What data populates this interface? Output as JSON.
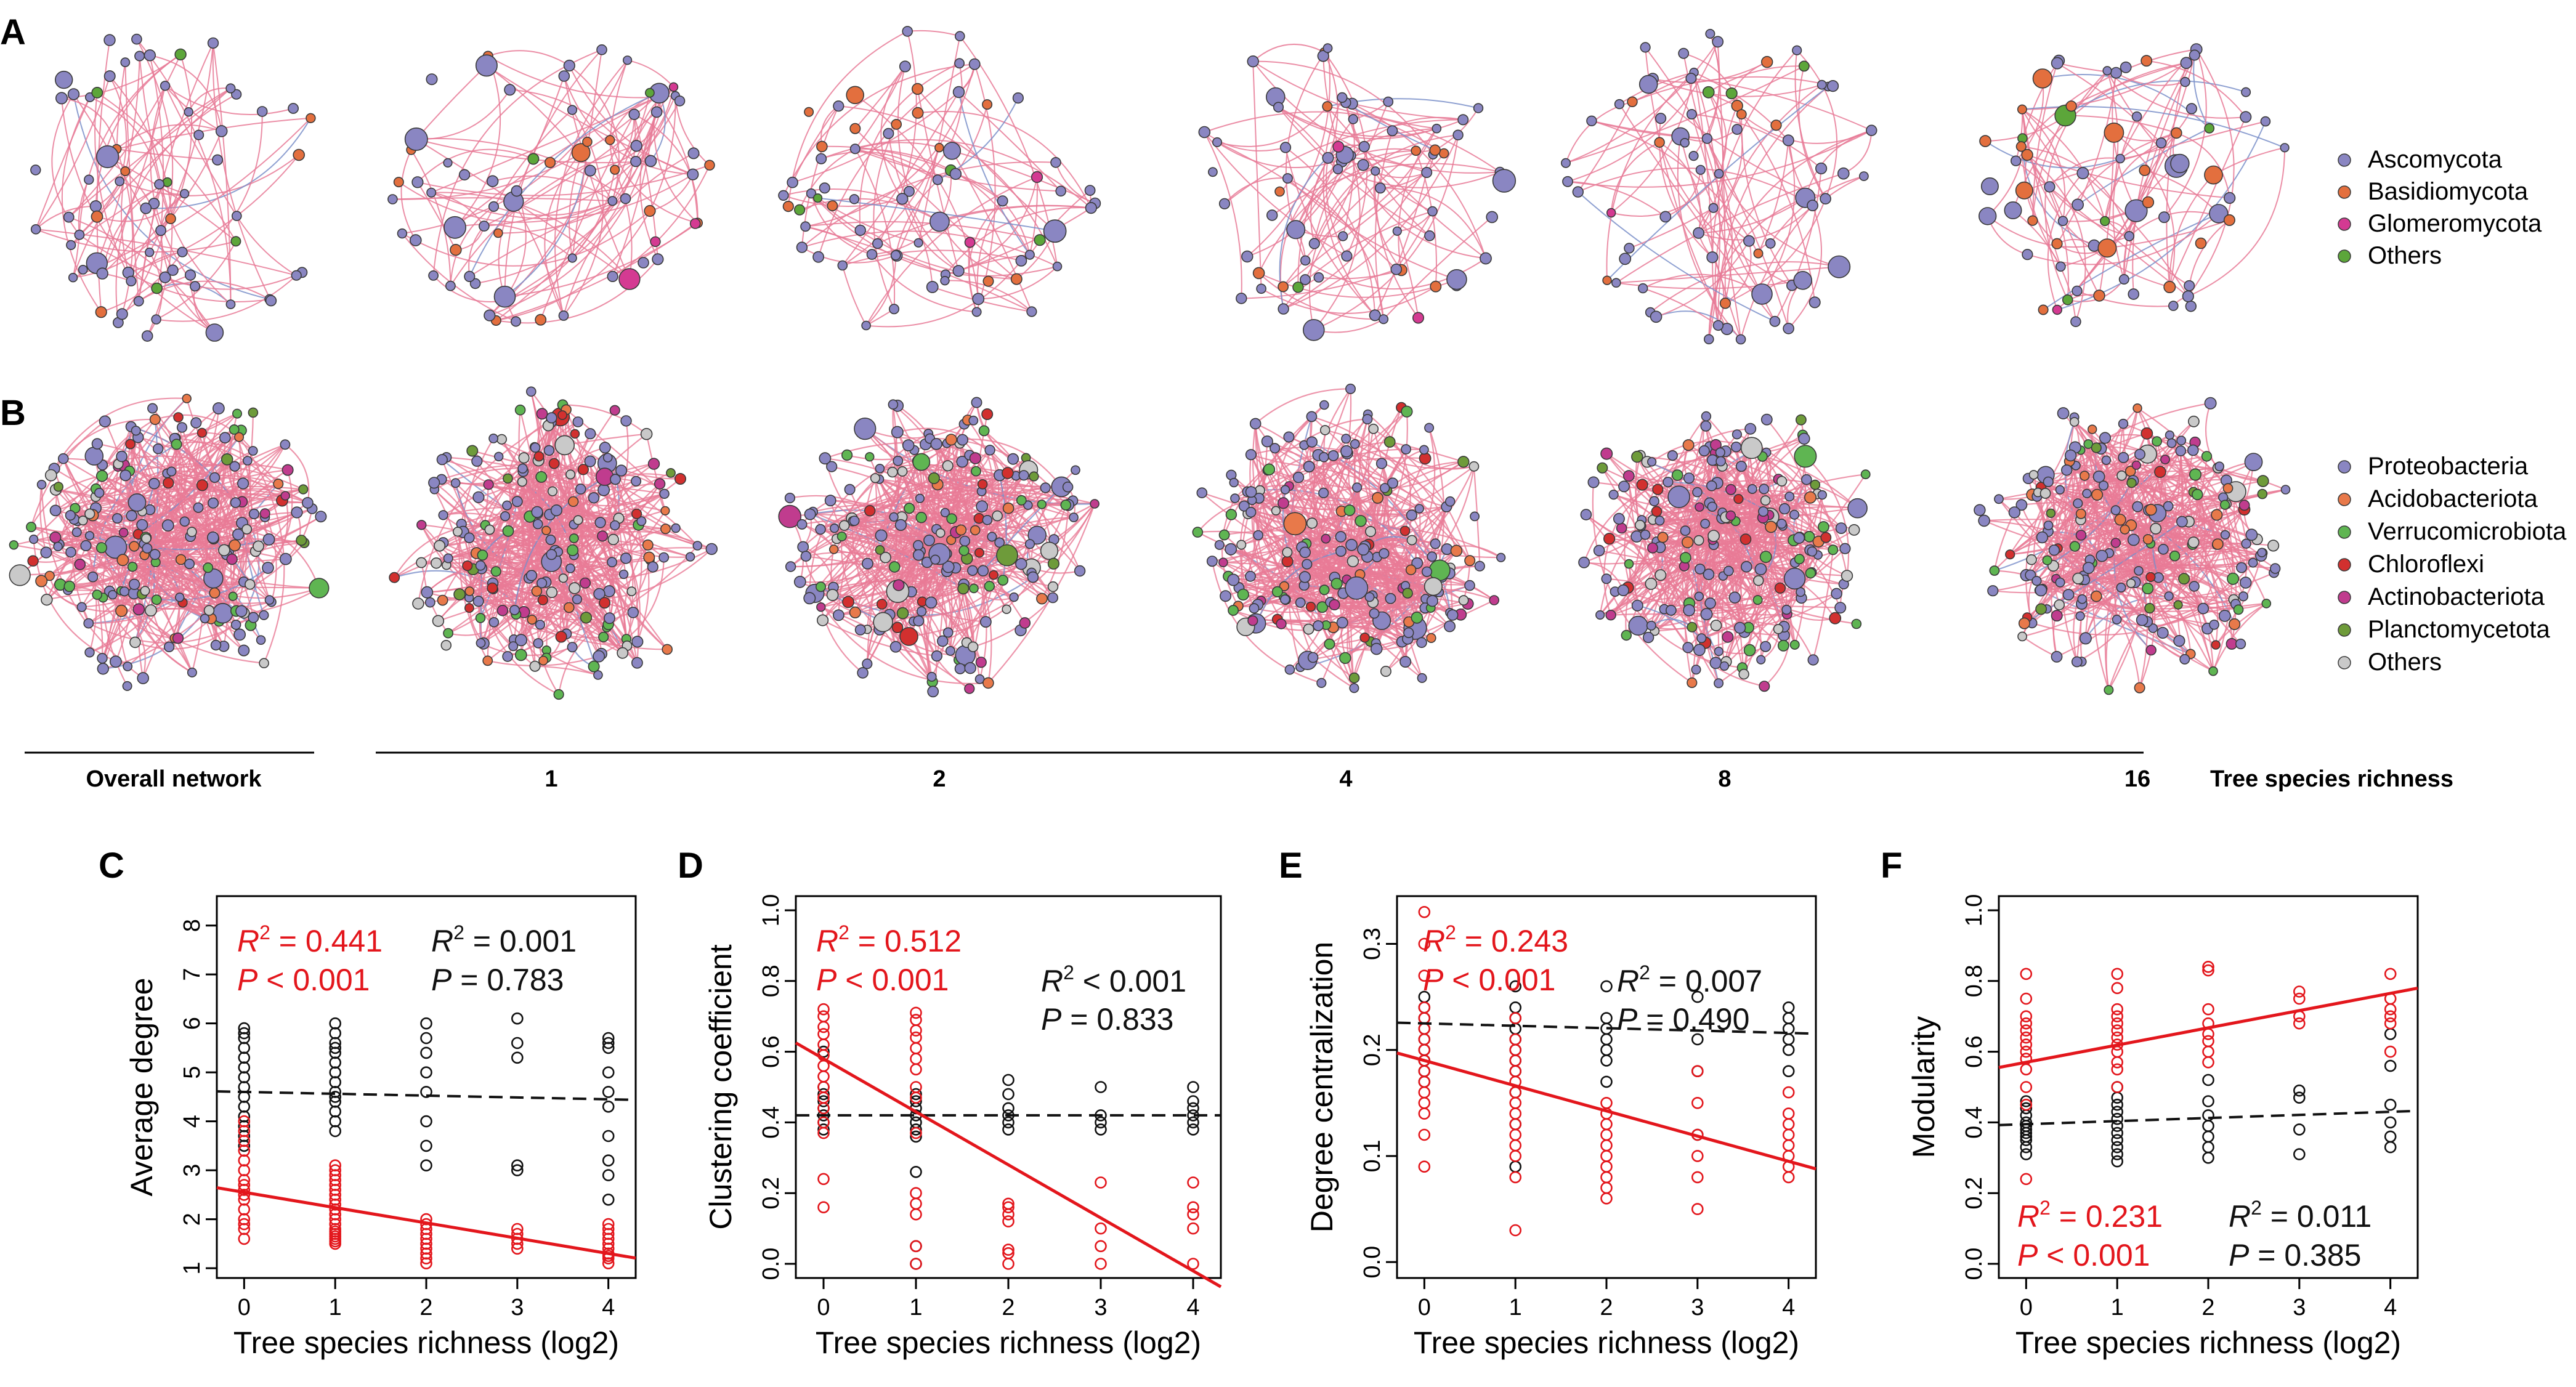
{
  "figure": {
    "panel_a": "A",
    "panel_b": "B",
    "panels_bottom": [
      "C",
      "D",
      "E",
      "F"
    ]
  },
  "networks": {
    "groups": [
      "Overall network",
      "1",
      "2",
      "4",
      "8",
      "16"
    ],
    "richness_label": "Tree species richness",
    "fungi_legend": [
      {
        "label": "Ascomycota",
        "color": "#8A86C2"
      },
      {
        "label": "Basidiomycota",
        "color": "#E36F3E"
      },
      {
        "label": "Glomeromycota",
        "color": "#D43A92"
      },
      {
        "label": "Others",
        "color": "#5CA63A"
      }
    ],
    "bacteria_legend": [
      {
        "label": "Proteobacteria",
        "color": "#8A86C2"
      },
      {
        "label": "Acidobacteriota",
        "color": "#E8794A"
      },
      {
        "label": "Verrucomicrobiota",
        "color": "#5FB552"
      },
      {
        "label": "Chloroflexi",
        "color": "#D2302F"
      },
      {
        "label": "Actinobacteriota",
        "color": "#C03C8E"
      },
      {
        "label": "Planctomycetota",
        "color": "#6E9B3A"
      },
      {
        "label": "Others",
        "color": "#C9C9C9"
      }
    ],
    "edge_color": "#E87A96",
    "negative_edge_color": "#7A8FC9"
  },
  "chart_data": [
    {
      "type": "scatter",
      "panel": "C",
      "xlabel": "Tree species richness (log2)",
      "ylabel": "Average degree",
      "xlim": [
        -0.3,
        4.3
      ],
      "ylim": [
        0.8,
        8.6
      ],
      "xticks": [
        0,
        1,
        2,
        3,
        4
      ],
      "yticks": [
        1,
        2,
        3,
        4,
        5,
        6,
        7,
        8
      ],
      "series": [
        {
          "color": "#E3161C",
          "x": [
            0,
            0,
            0,
            0,
            0,
            0,
            0,
            0,
            0,
            0,
            0,
            0,
            0,
            0,
            0,
            0,
            1,
            1,
            1,
            1,
            1,
            1,
            1,
            1,
            1,
            1,
            1,
            1,
            1,
            1,
            1,
            1,
            1,
            1,
            1,
            1,
            2,
            2,
            2,
            2,
            2,
            2,
            2,
            2,
            2,
            2,
            3,
            3,
            3,
            3,
            3,
            4,
            4,
            4,
            4,
            4,
            4,
            4,
            4,
            4,
            4
          ],
          "y": [
            1.6,
            1.8,
            1.9,
            2.0,
            2.2,
            2.4,
            2.5,
            2.6,
            2.8,
            3.0,
            3.2,
            3.4,
            3.6,
            3.8,
            4.0,
            2.7,
            1.5,
            1.6,
            1.7,
            1.8,
            1.9,
            2.0,
            2.1,
            2.2,
            2.3,
            2.4,
            2.5,
            2.6,
            2.7,
            2.8,
            2.9,
            3.0,
            3.1,
            1.55,
            1.65,
            1.75,
            1.1,
            1.2,
            1.3,
            1.4,
            1.5,
            1.6,
            1.7,
            1.8,
            1.9,
            2.0,
            1.4,
            1.5,
            1.6,
            1.7,
            1.8,
            1.1,
            1.2,
            1.3,
            1.4,
            1.5,
            1.6,
            1.7,
            1.8,
            1.9,
            1.25
          ],
          "fit": [
            2.55,
            1.3
          ],
          "stats": [
            "R",
            "2",
            " = 0.441",
            "P",
            " < 0.001"
          ]
        },
        {
          "color": "#111111",
          "x": [
            0,
            0,
            0,
            0,
            0,
            0,
            0,
            0,
            0,
            0,
            0,
            0,
            0,
            0,
            1,
            1,
            1,
            1,
            1,
            1,
            1,
            1,
            1,
            1,
            1,
            1,
            1,
            1,
            2,
            2,
            2,
            2,
            2,
            2,
            2,
            2,
            3,
            3,
            3,
            3,
            3,
            4,
            4,
            4,
            4,
            4,
            4,
            4,
            4,
            4,
            4
          ],
          "y": [
            3.9,
            4.1,
            4.3,
            4.5,
            4.7,
            4.9,
            5.1,
            5.3,
            5.5,
            5.7,
            5.8,
            5.9,
            3.7,
            3.5,
            4.0,
            4.2,
            4.4,
            4.6,
            4.8,
            5.0,
            5.2,
            5.4,
            5.6,
            5.8,
            6.0,
            3.8,
            4.5,
            5.5,
            4.0,
            4.6,
            5.0,
            5.4,
            5.7,
            6.0,
            3.1,
            3.5,
            3.0,
            3.1,
            5.3,
            5.6,
            6.1,
            2.4,
            2.9,
            3.2,
            3.7,
            4.3,
            4.6,
            5.0,
            5.5,
            5.6,
            5.7
          ],
          "fit": [
            4.6,
            4.45
          ],
          "stats": [
            "R",
            "2",
            " = 0.001",
            "P",
            " = 0.783"
          ]
        }
      ]
    },
    {
      "type": "scatter",
      "panel": "D",
      "xlabel": "Tree species richness (log2)",
      "ylabel": "Clustering coefficient",
      "xlim": [
        -0.3,
        4.3
      ],
      "ylim": [
        -0.04,
        1.04
      ],
      "xticks": [
        0,
        1,
        2,
        3,
        4
      ],
      "yticks": [
        0.0,
        0.2,
        0.4,
        0.6,
        0.8,
        1.0
      ],
      "series": [
        {
          "color": "#E3161C",
          "x": [
            0,
            0,
            0,
            0,
            0,
            0,
            0,
            0,
            0,
            0,
            0,
            0,
            0,
            0,
            0,
            1,
            1,
            1,
            1,
            1,
            1,
            1,
            1,
            1,
            1,
            1,
            1,
            1,
            1,
            1,
            2,
            2,
            2,
            2,
            2,
            2,
            2,
            3,
            3,
            3,
            3,
            4,
            4,
            4,
            4,
            4
          ],
          "y": [
            0.16,
            0.24,
            0.37,
            0.4,
            0.44,
            0.47,
            0.5,
            0.53,
            0.56,
            0.59,
            0.62,
            0.65,
            0.67,
            0.7,
            0.72,
            0.0,
            0.05,
            0.14,
            0.17,
            0.2,
            0.37,
            0.47,
            0.5,
            0.55,
            0.58,
            0.61,
            0.64,
            0.66,
            0.69,
            0.71,
            0.0,
            0.04,
            0.12,
            0.14,
            0.16,
            0.17,
            0.03,
            0.0,
            0.05,
            0.1,
            0.23,
            0.0,
            0.1,
            0.14,
            0.16,
            0.23
          ],
          "fit": [
            0.58,
            -0.02
          ],
          "stats": [
            "R",
            "2",
            " = 0.512",
            "P",
            " < 0.001"
          ]
        },
        {
          "color": "#111111",
          "x": [
            0,
            0,
            0,
            0,
            0,
            0,
            0,
            0,
            1,
            1,
            1,
            1,
            1,
            1,
            1,
            1,
            1,
            1,
            2,
            2,
            2,
            2,
            2,
            2,
            3,
            3,
            3,
            3,
            4,
            4,
            4,
            4,
            4,
            4
          ],
          "y": [
            0.38,
            0.4,
            0.42,
            0.44,
            0.46,
            0.48,
            0.5,
            0.6,
            0.0,
            0.05,
            0.26,
            0.36,
            0.38,
            0.4,
            0.42,
            0.44,
            0.46,
            0.48,
            0.38,
            0.4,
            0.42,
            0.44,
            0.48,
            0.52,
            0.38,
            0.4,
            0.42,
            0.5,
            0.38,
            0.4,
            0.42,
            0.44,
            0.46,
            0.5
          ],
          "fit": [
            0.42,
            0.42
          ],
          "stats": [
            "R",
            "2",
            " < 0.001",
            "P",
            " = 0.833"
          ]
        }
      ]
    },
    {
      "type": "scatter",
      "panel": "E",
      "xlabel": "Tree species richness (log2)",
      "ylabel": "Degree centralization",
      "xlim": [
        -0.3,
        4.3
      ],
      "ylim": [
        -0.015,
        0.345
      ],
      "xticks": [
        0,
        1,
        2,
        3,
        4
      ],
      "yticks": [
        0.0,
        0.1,
        0.2,
        0.3
      ],
      "series": [
        {
          "color": "#E3161C",
          "x": [
            0,
            0,
            0,
            0,
            0,
            0,
            0,
            0,
            0,
            0,
            0,
            0,
            0,
            0,
            0,
            0,
            1,
            1,
            1,
            1,
            1,
            1,
            1,
            1,
            1,
            1,
            1,
            1,
            1,
            1,
            1,
            2,
            2,
            2,
            2,
            2,
            2,
            2,
            2,
            2,
            2,
            3,
            3,
            3,
            3,
            3,
            3,
            4,
            4,
            4,
            4,
            4,
            4,
            4,
            4
          ],
          "y": [
            0.09,
            0.12,
            0.14,
            0.15,
            0.16,
            0.17,
            0.18,
            0.19,
            0.2,
            0.21,
            0.22,
            0.23,
            0.24,
            0.27,
            0.3,
            0.33,
            0.03,
            0.08,
            0.1,
            0.11,
            0.12,
            0.13,
            0.14,
            0.15,
            0.16,
            0.17,
            0.18,
            0.19,
            0.2,
            0.21,
            0.23,
            0.06,
            0.07,
            0.08,
            0.09,
            0.1,
            0.11,
            0.12,
            0.13,
            0.14,
            0.15,
            0.05,
            0.08,
            0.1,
            0.12,
            0.15,
            0.18,
            0.08,
            0.09,
            0.1,
            0.11,
            0.12,
            0.13,
            0.14,
            0.16
          ],
          "fit": [
            0.19,
            0.095
          ],
          "stats": [
            "R",
            "2",
            " = 0.243",
            "P",
            " < 0.001"
          ]
        },
        {
          "color": "#111111",
          "x": [
            0,
            0,
            0,
            0,
            0,
            0,
            0,
            0,
            0,
            0,
            1,
            1,
            1,
            1,
            1,
            1,
            1,
            1,
            1,
            1,
            1,
            2,
            2,
            2,
            2,
            2,
            2,
            2,
            3,
            3,
            3,
            3,
            4,
            4,
            4,
            4,
            4,
            4
          ],
          "y": [
            0.17,
            0.18,
            0.19,
            0.2,
            0.21,
            0.22,
            0.23,
            0.24,
            0.25,
            0.19,
            0.09,
            0.13,
            0.16,
            0.18,
            0.19,
            0.2,
            0.21,
            0.22,
            0.23,
            0.24,
            0.26,
            0.17,
            0.19,
            0.2,
            0.21,
            0.22,
            0.23,
            0.26,
            0.12,
            0.18,
            0.21,
            0.25,
            0.18,
            0.2,
            0.21,
            0.22,
            0.23,
            0.24
          ],
          "fit": [
            0.225,
            0.216
          ],
          "stats": [
            "R",
            "2",
            " = 0.007",
            "P",
            " = 0.490"
          ]
        }
      ]
    },
    {
      "type": "scatter",
      "panel": "F",
      "xlabel": "Tree species richness (log2)",
      "ylabel": "Modularity",
      "xlim": [
        -0.3,
        4.3
      ],
      "ylim": [
        -0.04,
        1.04
      ],
      "xticks": [
        0,
        1,
        2,
        3,
        4
      ],
      "yticks": [
        0.0,
        0.2,
        0.4,
        0.6,
        0.8,
        1.0
      ],
      "series": [
        {
          "color": "#E3161C",
          "x": [
            0,
            0,
            0,
            0,
            0,
            0,
            0,
            0,
            0,
            0,
            0,
            0,
            0,
            1,
            1,
            1,
            1,
            1,
            1,
            1,
            1,
            1,
            1,
            1,
            1,
            2,
            2,
            2,
            2,
            2,
            2,
            2,
            2,
            3,
            3,
            3,
            3,
            4,
            4,
            4,
            4,
            4,
            4
          ],
          "y": [
            0.24,
            0.45,
            0.5,
            0.55,
            0.58,
            0.6,
            0.62,
            0.64,
            0.66,
            0.68,
            0.7,
            0.75,
            0.82,
            0.5,
            0.55,
            0.57,
            0.6,
            0.62,
            0.64,
            0.66,
            0.68,
            0.7,
            0.72,
            0.78,
            0.82,
            0.57,
            0.6,
            0.63,
            0.65,
            0.68,
            0.72,
            0.83,
            0.84,
            0.68,
            0.7,
            0.75,
            0.77,
            0.6,
            0.68,
            0.7,
            0.72,
            0.75,
            0.82
          ],
          "fit": [
            0.57,
            0.765
          ],
          "stats": [
            "R",
            "2",
            " = 0.231",
            "P",
            " < 0.001"
          ]
        },
        {
          "color": "#111111",
          "x": [
            0,
            0,
            0,
            0,
            0,
            0,
            0,
            0,
            0,
            0,
            0,
            1,
            1,
            1,
            1,
            1,
            1,
            1,
            1,
            1,
            1,
            1,
            2,
            2,
            2,
            2,
            2,
            2,
            2,
            3,
            3,
            3,
            3,
            4,
            4,
            4,
            4,
            4,
            4
          ],
          "y": [
            0.31,
            0.33,
            0.35,
            0.36,
            0.37,
            0.38,
            0.39,
            0.4,
            0.42,
            0.44,
            0.46,
            0.29,
            0.31,
            0.33,
            0.35,
            0.37,
            0.39,
            0.41,
            0.43,
            0.45,
            0.47,
            0.5,
            0.3,
            0.33,
            0.36,
            0.39,
            0.42,
            0.46,
            0.52,
            0.31,
            0.38,
            0.47,
            0.49,
            0.33,
            0.36,
            0.4,
            0.45,
            0.56,
            0.65
          ],
          "fit": [
            0.395,
            0.43
          ],
          "stats": [
            "R",
            "2",
            " = 0.011",
            "P",
            " = 0.385"
          ]
        }
      ]
    }
  ]
}
